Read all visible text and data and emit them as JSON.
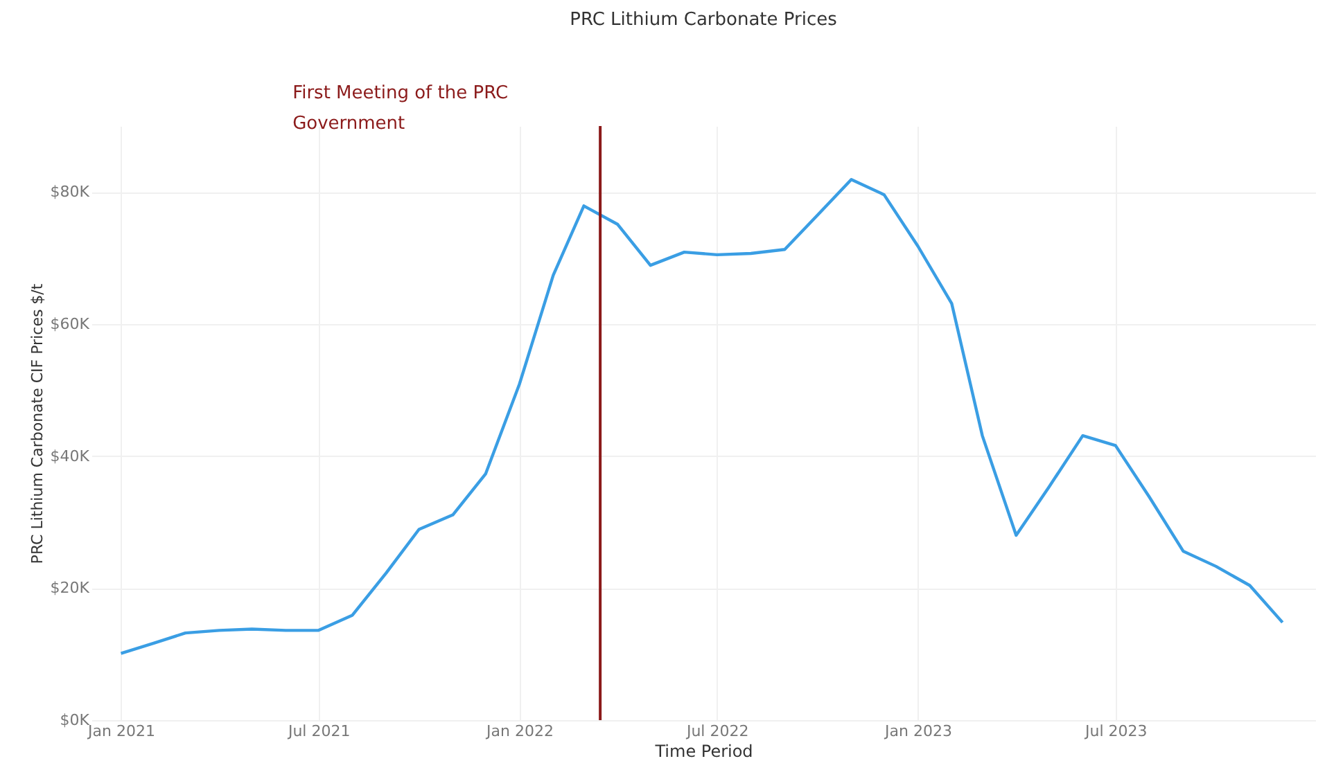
{
  "chart_data": {
    "type": "line",
    "title": "PRC Lithium Carbonate Prices",
    "xlabel": "Time Period",
    "ylabel": "PRC Lithium Carbonate CIF Prices $/t",
    "x": [
      "2021-01",
      "2021-02",
      "2021-03",
      "2021-04",
      "2021-05",
      "2021-06",
      "2021-07",
      "2021-08",
      "2021-09",
      "2021-10",
      "2021-11",
      "2021-12",
      "2022-01",
      "2022-02",
      "2022-03",
      "2022-04",
      "2022-05",
      "2022-06",
      "2022-07",
      "2022-08",
      "2022-09",
      "2022-10",
      "2022-11",
      "2022-12",
      "2023-01",
      "2023-02",
      "2023-03",
      "2023-04",
      "2023-05",
      "2023-06",
      "2023-07",
      "2023-08",
      "2023-09",
      "2023-10",
      "2023-11",
      "2023-12"
    ],
    "series": [
      {
        "color": "#3a9ee4",
        "values": [
          10100,
          11700,
          13200,
          13600,
          13800,
          13600,
          13600,
          15900,
          22300,
          28900,
          31100,
          37300,
          50900,
          67400,
          77900,
          75100,
          68900,
          70900,
          70500,
          70700,
          71300,
          76500,
          81900,
          79600,
          71800,
          63100,
          43100,
          28000,
          35300,
          43100,
          41600,
          33800,
          25600,
          23300,
          20400,
          14800
        ]
      }
    ],
    "xlim": [
      "2020-12-05",
      "2023-12-31"
    ],
    "xticks": [
      {
        "value": "2021-01-01",
        "label": "Jan 2021"
      },
      {
        "value": "2021-07-01",
        "label": "Jul 2021"
      },
      {
        "value": "2022-01-01",
        "label": "Jan 2022"
      },
      {
        "value": "2022-07-01",
        "label": "Jul 2022"
      },
      {
        "value": "2023-01-01",
        "label": "Jan 2023"
      },
      {
        "value": "2023-07-01",
        "label": "Jul 2023"
      }
    ],
    "ylim": [
      0,
      90000
    ],
    "yticks": [
      {
        "value": 0,
        "label": "$0K"
      },
      {
        "value": 20000,
        "label": "$20K"
      },
      {
        "value": 40000,
        "label": "$40K"
      },
      {
        "value": 60000,
        "label": "$60K"
      },
      {
        "value": 80000,
        "label": "$80K"
      }
    ],
    "ref_lines": [
      {
        "axis": "x",
        "value": "2022-03-16",
        "label": "First Meeting of the PRC Government",
        "color": "#8b1a1a"
      }
    ],
    "grid": true,
    "marker": "none",
    "line_style": "solid"
  }
}
